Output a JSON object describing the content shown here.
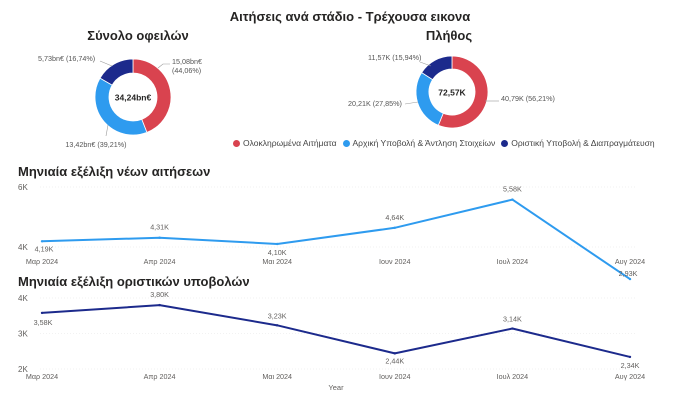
{
  "page_title": "Αιτήσεις ανά στάδιο - Τρέχουσα εικονα",
  "colors": {
    "red": "#d9434f",
    "light_blue": "#2e9bef",
    "dark_blue": "#1c2a8c",
    "line1": "#2e9bef",
    "line2": "#1c2a8c"
  },
  "legend": [
    {
      "label": "Ολοκληρωμένα Αιτήματα",
      "color": "#d9434f"
    },
    {
      "label": "Αρχική Υποβολή & Άντληση Στοιχείων",
      "color": "#2e9bef"
    },
    {
      "label": "Οριστική Υποβολή & Διαπραγμάτευση",
      "color": "#1c2a8c"
    }
  ],
  "chart_data": [
    {
      "type": "pie",
      "title": "Σύνολο οφειλών",
      "center_label": "34,24bn€",
      "slices": [
        {
          "label": "15,08bn€ (44,06%)",
          "value": 44.06,
          "color": "#d9434f"
        },
        {
          "label": "13,42bn€ (39,21%)",
          "value": 39.21,
          "color": "#2e9bef"
        },
        {
          "label": "5,73bn€ (16,74%)",
          "value": 16.74,
          "color": "#1c2a8c"
        }
      ]
    },
    {
      "type": "pie",
      "title": "Πλήθος",
      "center_label": "72,57K",
      "slices": [
        {
          "label": "40,79K (56,21%)",
          "value": 56.21,
          "color": "#d9434f"
        },
        {
          "label": "20,21K (27,85%)",
          "value": 27.85,
          "color": "#2e9bef"
        },
        {
          "label": "11,57K (15,94%)",
          "value": 15.94,
          "color": "#1c2a8c"
        }
      ]
    },
    {
      "type": "line",
      "title": "Μηνιαία εξέλιξη νέων αιτήσεων",
      "categories": [
        "Μαρ 2024",
        "Απρ 2024",
        "Μαι 2024",
        "Ιουν 2024",
        "Ιουλ 2024",
        "Αυγ 2024"
      ],
      "values": [
        4.19,
        4.31,
        4.1,
        4.64,
        5.58,
        2.93
      ],
      "value_labels": [
        "4,19K",
        "4,31K",
        "4,10K",
        "4,64K",
        "5,58K",
        "2,93K"
      ],
      "y_ticks": [
        "4K",
        "6K"
      ],
      "ylim": [
        3.0,
        6.0
      ],
      "color": "#2e9bef"
    },
    {
      "type": "line",
      "title": "Μηνιαία εξέλιξη οριστικών υποβολών",
      "categories": [
        "Μαρ 2024",
        "Απρ 2024",
        "Μαι 2024",
        "Ιουν 2024",
        "Ιουλ 2024",
        "Αυγ 2024"
      ],
      "values": [
        3.58,
        3.8,
        3.23,
        2.44,
        3.14,
        2.34
      ],
      "value_labels": [
        "3,58K",
        "3,80K",
        "3,23K",
        "2,44K",
        "3,14K",
        "2,34K"
      ],
      "y_ticks": [
        "2K",
        "3K",
        "4K"
      ],
      "ylim": [
        2.0,
        4.0
      ],
      "xlabel": "Year",
      "color": "#1c2a8c"
    }
  ]
}
